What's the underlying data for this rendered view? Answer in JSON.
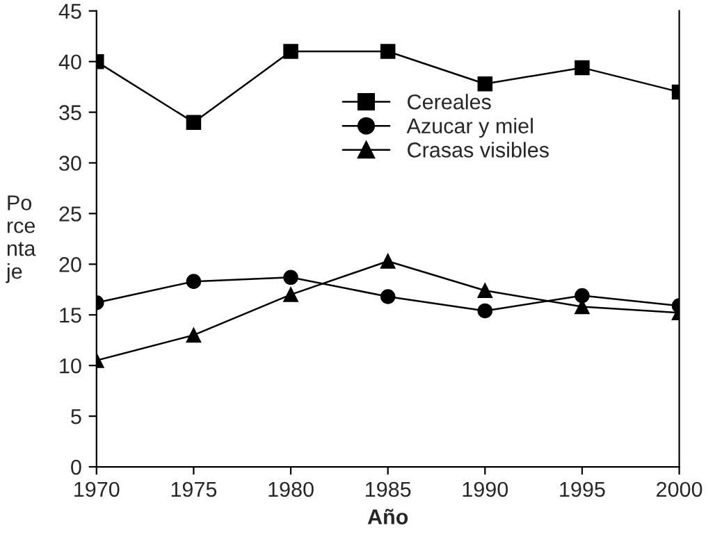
{
  "chart_data": {
    "type": "line",
    "xlabel": "Año",
    "ylabel": "Po\nrce\nnta\nje",
    "x": [
      1970,
      1975,
      1980,
      1985,
      1990,
      1995,
      2000
    ],
    "series": [
      {
        "name": "Cereales",
        "color": "#000000",
        "marker": "square",
        "values": [
          40,
          34,
          41,
          41,
          37.8,
          39.4,
          37
        ]
      },
      {
        "name": "Azucar y miel",
        "color": "#000000",
        "marker": "circle",
        "values": [
          16.2,
          18.3,
          18.7,
          16.8,
          15.4,
          16.9,
          15.9
        ]
      },
      {
        "name": "Crasas visibles",
        "color": "#000000",
        "marker": "triangle",
        "values": [
          10.5,
          13,
          17,
          20.3,
          17.4,
          15.8,
          15.2
        ]
      }
    ],
    "xlim": [
      1970,
      2000
    ],
    "xticks": [
      1970,
      1975,
      1980,
      1985,
      1990,
      1995,
      2000
    ],
    "ylim": [
      0,
      45
    ],
    "yticks": [
      0,
      5,
      10,
      15,
      20,
      25,
      30,
      35,
      40,
      45
    ],
    "grid": false,
    "legend": "top",
    "line_style": "solid"
  }
}
